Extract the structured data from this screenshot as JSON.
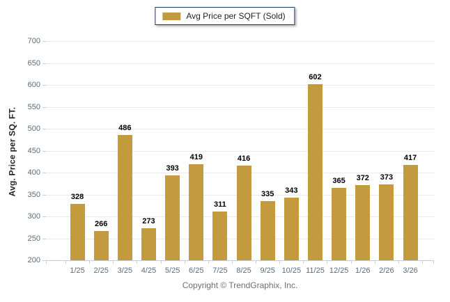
{
  "legend": {
    "label": "Avg Price per SQFT (Sold)",
    "swatch_color": "#C49A3E"
  },
  "footer": {
    "copyright": "Copyright © TrendGraphix, Inc."
  },
  "chart_data": {
    "type": "bar",
    "title": "",
    "series_name": "Avg Price per SQFT (Sold)",
    "categories": [
      "1/25",
      "2/25",
      "3/25",
      "4/25",
      "5/25",
      "6/25",
      "7/25",
      "8/25",
      "9/25",
      "10/25",
      "11/25",
      "12/25",
      "1/26",
      "2/26",
      "3/26"
    ],
    "values": [
      328,
      266,
      486,
      273,
      393,
      419,
      311,
      416,
      335,
      343,
      602,
      365,
      372,
      373,
      417
    ],
    "xlabel": "",
    "ylabel": "Avg. Price per SQ. FT.",
    "ylim": [
      200,
      700
    ],
    "ytick_step": 50,
    "yticks": [
      200,
      250,
      300,
      350,
      400,
      450,
      500,
      550,
      600,
      650,
      700
    ],
    "grid": true,
    "value_labels": true,
    "legend_position": "top-center",
    "bar_color": "#C49A3E",
    "colors": {
      "bar": "#C49A3E",
      "grid": "#EAEAEA",
      "axis_line": "#C6CCD3",
      "axis_label": "#5A6B7C",
      "value_label": "#000000",
      "legend_border": "#1E3A5F"
    }
  }
}
